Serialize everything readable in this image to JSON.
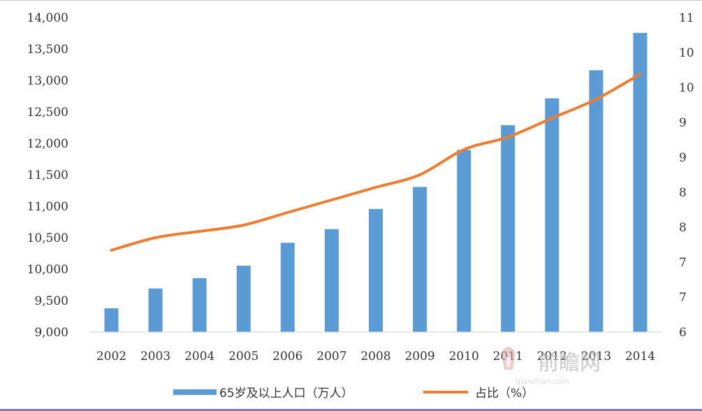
{
  "chart_data": {
    "type": "bar+line",
    "categories": [
      "2002",
      "2003",
      "2004",
      "2005",
      "2006",
      "2007",
      "2008",
      "2009",
      "2010",
      "2011",
      "2012",
      "2013",
      "2014"
    ],
    "series": [
      {
        "name": "65岁及以上人口（万人）",
        "type": "bar",
        "axis": "left",
        "values": [
          9377,
          9692,
          9857,
          10055,
          10419,
          10636,
          10956,
          11307,
          11894,
          12288,
          12714,
          13161,
          13755
        ]
      },
      {
        "name": "占比（%）",
        "type": "line",
        "axis": "right",
        "values": [
          7.3,
          7.5,
          7.6,
          7.7,
          7.9,
          8.1,
          8.3,
          8.5,
          8.9,
          9.1,
          9.4,
          9.7,
          10.1
        ]
      }
    ],
    "left_axis": {
      "ylim": [
        9000,
        14000
      ],
      "ticks": [
        "9,000",
        "9,500",
        "10,000",
        "10,500",
        "11,000",
        "11,500",
        "12,000",
        "12,500",
        "13,000",
        "13,500",
        "14,000"
      ]
    },
    "right_axis": {
      "ylim": [
        6,
        11
      ],
      "ticks": [
        "6",
        "7",
        "7",
        "8",
        "8",
        "9",
        "9",
        "10",
        "10",
        "11"
      ]
    },
    "legend": {
      "placement": "bottom",
      "bar_label": "65岁及以上人口（万人）",
      "line_label": "占比（%）"
    },
    "grid": false,
    "colors": {
      "bar": "#5b9bd5",
      "line": "#ed7d31"
    }
  },
  "watermark": {
    "text": "前瞻网",
    "url": "qianzhan.com"
  }
}
